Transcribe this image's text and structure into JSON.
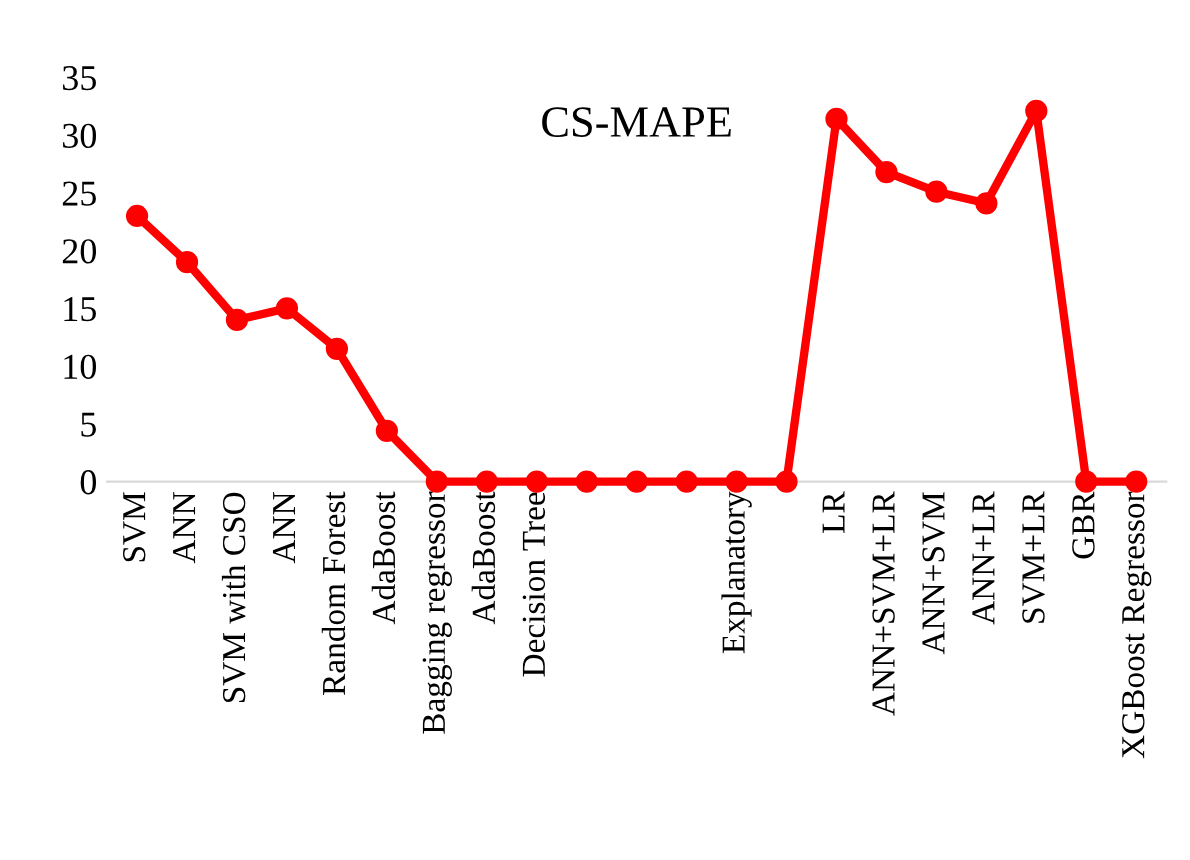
{
  "chart_data": {
    "type": "line",
    "title": "CS-MAPE",
    "categories": [
      "SVM",
      "ANN",
      "SVM with CSO",
      "ANN",
      "Random Forest",
      "AdaBoost",
      "Bagging regressor",
      "AdaBoost",
      "Decision Tree",
      null,
      null,
      null,
      "Explanatory",
      null,
      "LR",
      "ANN+SVM+LR",
      "ANN+SVM",
      "ANN+LR",
      "SVM+LR",
      "GBR",
      "XGBoost Regressor"
    ],
    "series": [
      {
        "color": "#ff0000",
        "values": [
          23,
          19,
          14,
          15,
          11.5,
          4.4,
          0,
          0,
          0,
          0,
          0,
          0,
          0,
          0,
          31.4,
          26.8,
          25.1,
          24.1,
          32.1,
          0,
          0
        ]
      }
    ],
    "ylim": [
      0,
      35
    ],
    "yticks": [
      0,
      5,
      10,
      15,
      20,
      25,
      30,
      35
    ],
    "marker": "circle",
    "line_style": "solid",
    "grid": false
  }
}
